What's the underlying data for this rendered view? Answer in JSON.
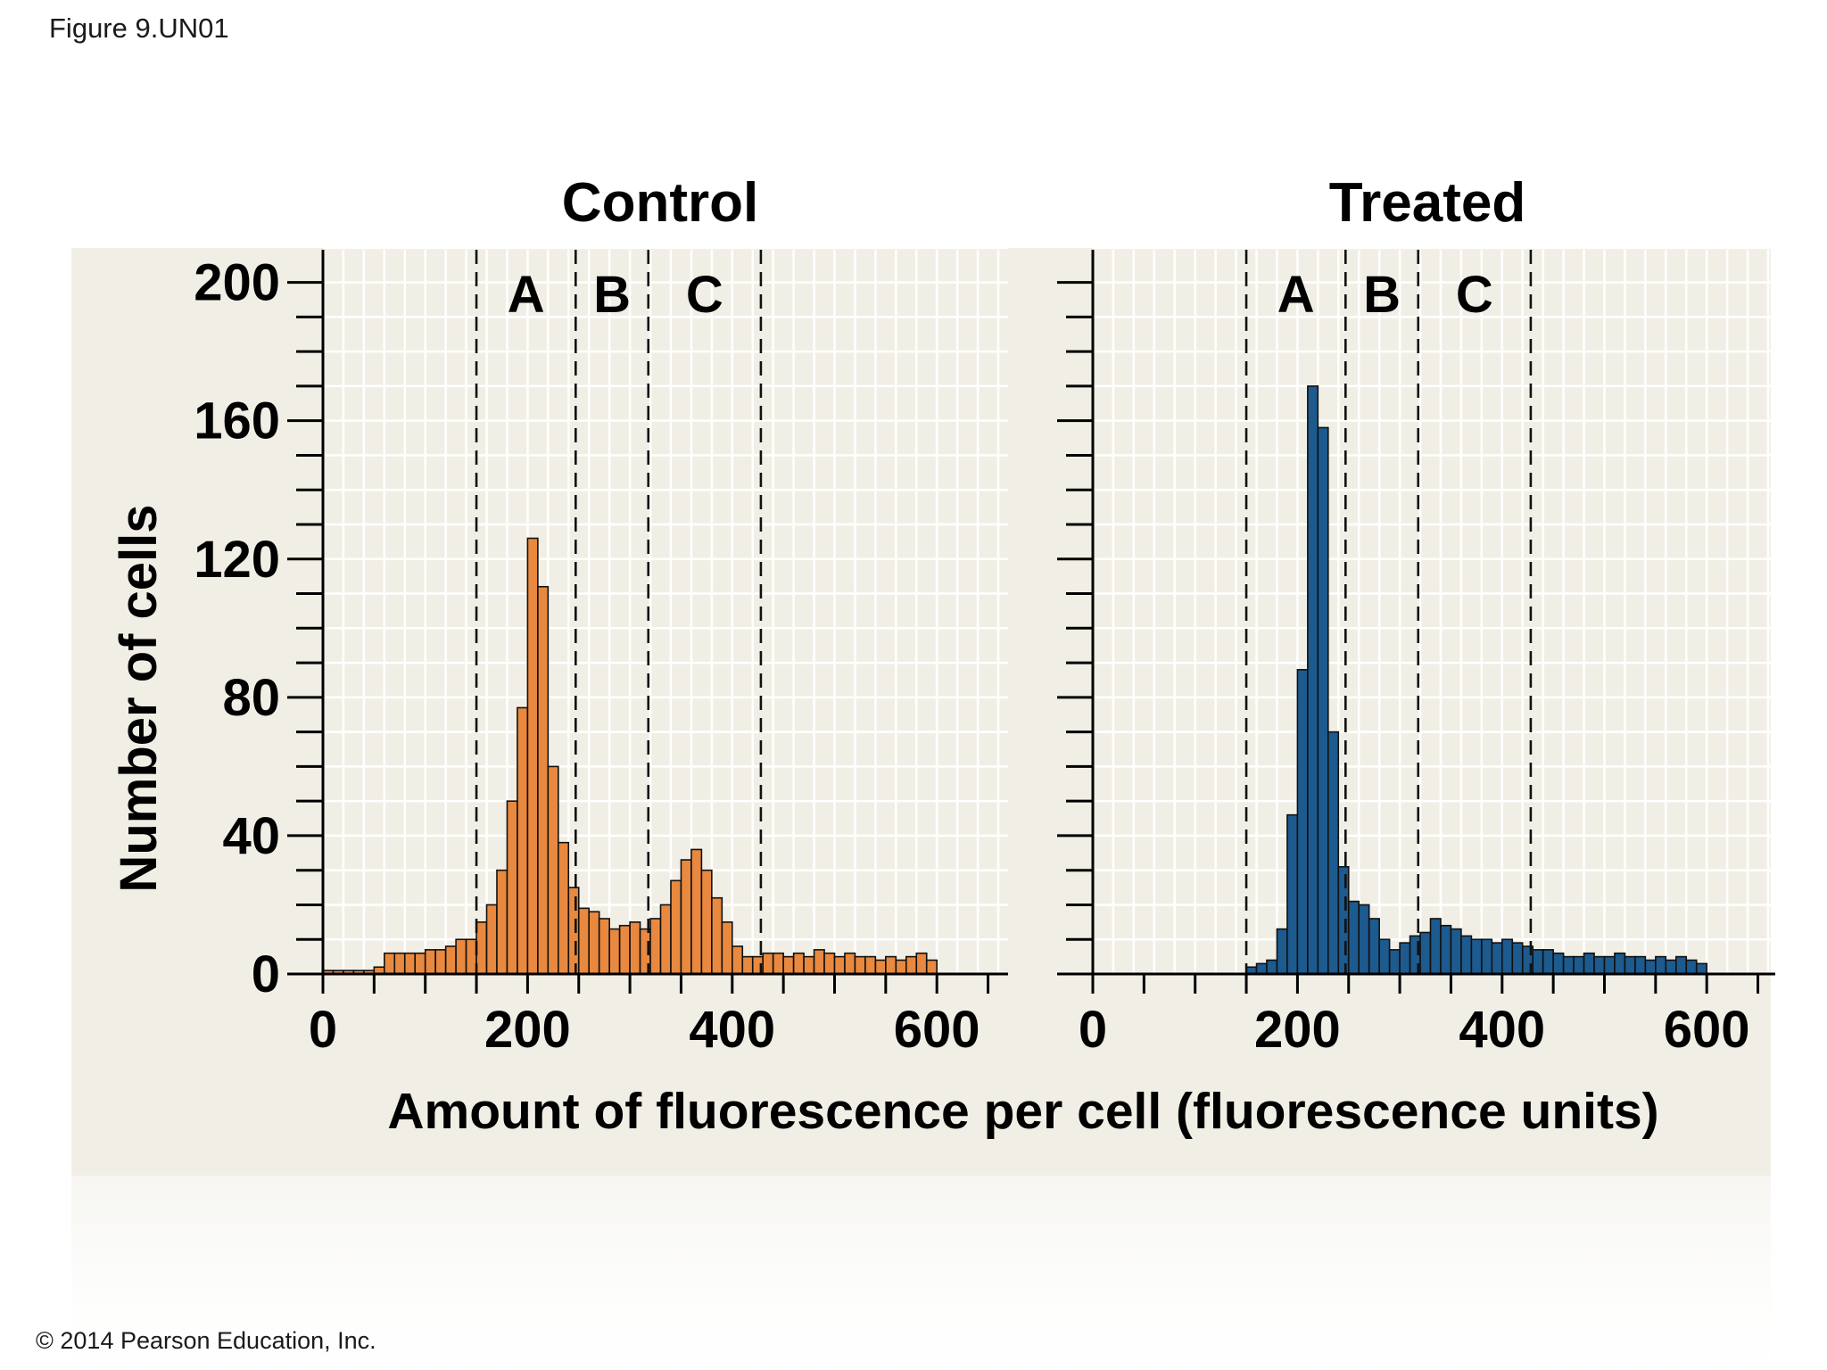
{
  "figure_label": "Figure 9.UN01",
  "copyright": "© 2014 Pearson Education, Inc.",
  "colors": {
    "control": "#e8893f",
    "treated": "#1d5a8e",
    "panel": "#efede1",
    "grid": "#ffffff"
  },
  "chart_data": [
    {
      "type": "bar",
      "title": "Control",
      "xlabel": "Amount of fluorescence per cell (fluorescence units)",
      "ylabel": "Number of cells",
      "xlim": [
        0,
        660
      ],
      "ylim": [
        0,
        200
      ],
      "xticks": [
        0,
        200,
        400,
        600
      ],
      "yticks": [
        0,
        40,
        80,
        120,
        160,
        200
      ],
      "bin_width": 10,
      "bins_start": [
        0,
        10,
        20,
        30,
        40,
        50,
        60,
        70,
        80,
        90,
        100,
        110,
        120,
        130,
        140,
        150,
        160,
        170,
        180,
        190,
        200,
        210,
        220,
        230,
        240,
        250,
        260,
        270,
        280,
        290,
        300,
        310,
        320,
        330,
        340,
        350,
        360,
        370,
        380,
        390,
        400,
        410,
        420,
        430,
        440,
        450,
        460,
        470,
        480,
        490,
        500,
        510,
        520,
        530,
        540,
        550,
        560,
        570,
        580,
        590
      ],
      "values": [
        1,
        1,
        1,
        1,
        1,
        2,
        6,
        6,
        6,
        6,
        7,
        7,
        8,
        10,
        10,
        15,
        20,
        30,
        50,
        77,
        126,
        112,
        60,
        38,
        25,
        19,
        18,
        16,
        13,
        14,
        15,
        13,
        16,
        20,
        27,
        33,
        36,
        30,
        22,
        15,
        8,
        5,
        5,
        6,
        6,
        5,
        6,
        5,
        7,
        6,
        5,
        6,
        5,
        5,
        4,
        5,
        4,
        5,
        6,
        4
      ],
      "region_boundaries": [
        150,
        247,
        318,
        428
      ],
      "regions": [
        "A",
        "B",
        "C"
      ],
      "grid": true
    },
    {
      "type": "bar",
      "title": "Treated",
      "xlabel": "Amount of fluorescence per cell (fluorescence units)",
      "ylabel": "Number of cells",
      "xlim": [
        0,
        660
      ],
      "ylim": [
        0,
        200
      ],
      "xticks": [
        0,
        200,
        400,
        600
      ],
      "yticks": [
        0,
        40,
        80,
        120,
        160,
        200
      ],
      "bin_width": 10,
      "bins_start": [
        150,
        160,
        170,
        180,
        190,
        200,
        210,
        220,
        230,
        240,
        250,
        260,
        270,
        280,
        290,
        300,
        310,
        320,
        330,
        340,
        350,
        360,
        370,
        380,
        390,
        400,
        410,
        420,
        430,
        440,
        450,
        460,
        470,
        480,
        490,
        500,
        510,
        520,
        530,
        540,
        550,
        560,
        570,
        580,
        590
      ],
      "values": [
        2,
        3,
        4,
        13,
        46,
        88,
        170,
        158,
        70,
        31,
        21,
        20,
        16,
        10,
        7,
        9,
        11,
        12,
        16,
        14,
        13,
        11,
        10,
        10,
        9,
        10,
        9,
        8,
        7,
        7,
        6,
        5,
        5,
        6,
        5,
        5,
        6,
        5,
        5,
        4,
        5,
        4,
        5,
        4,
        3
      ],
      "region_boundaries": [
        150,
        247,
        318,
        428
      ],
      "regions": [
        "A",
        "B",
        "C"
      ],
      "grid": true
    }
  ]
}
